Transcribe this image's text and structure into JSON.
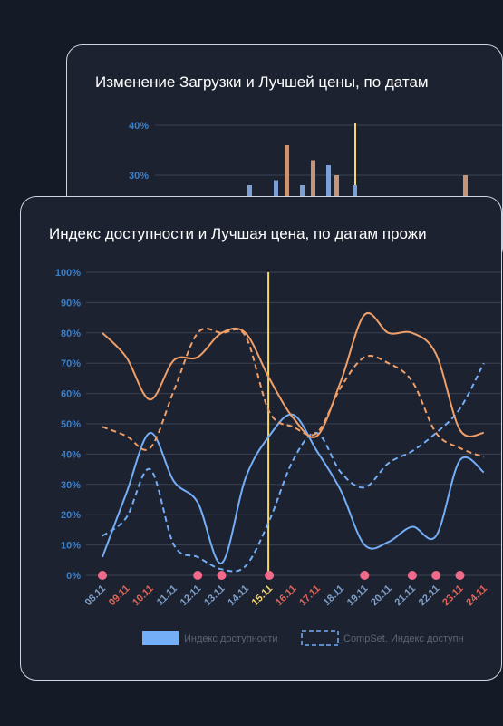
{
  "back_card": {
    "title": "Изменение Загрузки и Лучшей цены, по датам"
  },
  "front_card": {
    "title": "Индекс доступности и Лучшая цена, по датам прожи"
  },
  "chart_data": [
    {
      "type": "bar",
      "title": "Изменение Загрузки и Лучшей цены, по датам",
      "ylabel": "",
      "yticks": [
        "40%",
        "30%"
      ],
      "ylim": [
        20,
        40
      ],
      "marker_line_color": "#f5d76e",
      "series": [
        {
          "name": "",
          "color": "#7c9fd4",
          "values": [
            28,
            29,
            28,
            32,
            28
          ]
        },
        {
          "name": "",
          "color": "#c99475",
          "values": [
            36,
            33,
            30,
            30
          ]
        }
      ]
    },
    {
      "type": "line",
      "title": "Индекс доступности и Лучшая цена, по датам прожи",
      "ylim": [
        0,
        100
      ],
      "yticks": [
        "0%",
        "10%",
        "20%",
        "30%",
        "40%",
        "50%",
        "60%",
        "70%",
        "80%",
        "90%",
        "100%"
      ],
      "categories": [
        "08.11",
        "09.11",
        "10.11",
        "11.11",
        "12.11",
        "13.11",
        "14.11",
        "15.11",
        "16.11",
        "17.11",
        "18.11",
        "19.11",
        "20.11",
        "21.11",
        "22.11",
        "23.11",
        "24.11"
      ],
      "category_colors": [
        "#7f9fc8",
        "#e0665a",
        "#e0665a",
        "#7f9fc8",
        "#7f9fc8",
        "#7f9fc8",
        "#7f9fc8",
        "#f5d76e",
        "#e0665a",
        "#e0665a",
        "#7f9fc8",
        "#7f9fc8",
        "#7f9fc8",
        "#7f9fc8",
        "#7f9fc8",
        "#e0665a",
        "#e0665a"
      ],
      "current_date_index": 7,
      "current_line_color": "#f5d76e",
      "event_marker_indices": [
        0,
        4,
        5,
        7,
        11,
        13,
        14,
        15
      ],
      "event_marker_color": "#f06a8c",
      "series": [
        {
          "name": "Индекс доступности",
          "color": "#74aef7",
          "dash": false,
          "values": [
            6,
            27,
            47,
            31,
            24,
            4,
            32,
            46,
            53,
            41,
            28,
            10,
            11,
            16,
            13,
            38,
            34
          ]
        },
        {
          "name": "CompSet. Индекс доступн",
          "color": "#74aef7",
          "dash": true,
          "values": [
            13,
            19,
            35,
            10,
            6,
            2,
            3,
            18,
            38,
            47,
            34,
            29,
            37,
            41,
            47,
            55,
            70
          ]
        },
        {
          "name": "",
          "color": "#f09f68",
          "dash": false,
          "values": [
            80,
            72,
            58,
            71,
            72,
            80,
            80,
            65,
            52,
            46,
            64,
            86,
            80,
            80,
            73,
            48,
            47
          ]
        },
        {
          "name": "",
          "color": "#f09f68",
          "dash": true,
          "values": [
            49,
            46,
            42,
            61,
            80,
            80,
            79,
            54,
            49,
            47,
            62,
            72,
            70,
            64,
            47,
            42,
            39
          ]
        }
      ],
      "legend": [
        "Индекс доступности",
        "CompSet. Индекс доступн"
      ]
    }
  ]
}
